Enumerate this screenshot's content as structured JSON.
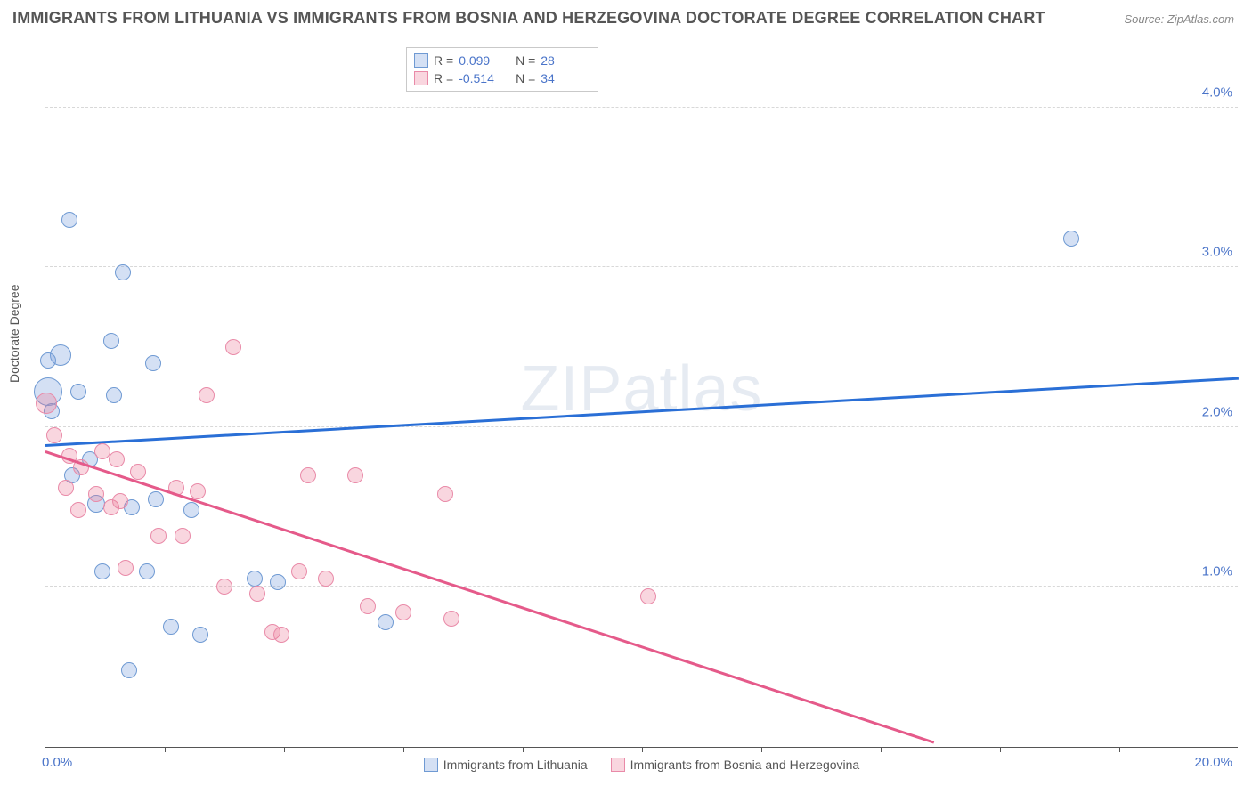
{
  "title": "IMMIGRANTS FROM LITHUANIA VS IMMIGRANTS FROM BOSNIA AND HERZEGOVINA DOCTORATE DEGREE CORRELATION CHART",
  "source": "Source: ZipAtlas.com",
  "watermark": "ZIPatlas",
  "chart": {
    "type": "scatter",
    "xlim": [
      0,
      20
    ],
    "ylim": [
      0,
      4.4
    ],
    "y_ticks": [
      1.0,
      2.0,
      3.0,
      4.0
    ],
    "x_minor_ticks": [
      2,
      4,
      6,
      8,
      10,
      12,
      14,
      16,
      18
    ],
    "x_label_min": "0.0%",
    "x_label_max": "20.0%",
    "y_tick_labels": [
      "1.0%",
      "2.0%",
      "3.0%",
      "4.0%"
    ],
    "y_axis_label": "Doctorate Degree",
    "background_color": "#ffffff",
    "grid_color": "#d8d8d8"
  },
  "series": [
    {
      "name": "Immigrants from Lithuania",
      "fill": "rgba(120,160,220,0.32)",
      "stroke": "#6f9ad3",
      "line_color": "#2a6fd6",
      "R": "0.099",
      "N": "28",
      "trend": {
        "x1": 0,
        "y1": 1.88,
        "x2": 20,
        "y2": 2.3
      },
      "points": [
        {
          "x": 0.4,
          "y": 3.3,
          "r": 9
        },
        {
          "x": 17.2,
          "y": 3.18,
          "r": 9
        },
        {
          "x": 1.3,
          "y": 2.97,
          "r": 9
        },
        {
          "x": 1.1,
          "y": 2.54,
          "r": 9
        },
        {
          "x": 0.25,
          "y": 2.45,
          "r": 12
        },
        {
          "x": 0.05,
          "y": 2.42,
          "r": 9
        },
        {
          "x": 1.8,
          "y": 2.4,
          "r": 9
        },
        {
          "x": 0.05,
          "y": 2.22,
          "r": 16
        },
        {
          "x": 0.55,
          "y": 2.22,
          "r": 9
        },
        {
          "x": 1.15,
          "y": 2.2,
          "r": 9
        },
        {
          "x": 0.1,
          "y": 2.1,
          "r": 9
        },
        {
          "x": 0.75,
          "y": 1.8,
          "r": 9
        },
        {
          "x": 0.45,
          "y": 1.7,
          "r": 9
        },
        {
          "x": 1.85,
          "y": 1.55,
          "r": 9
        },
        {
          "x": 0.85,
          "y": 1.52,
          "r": 10
        },
        {
          "x": 1.45,
          "y": 1.5,
          "r": 9
        },
        {
          "x": 2.45,
          "y": 1.48,
          "r": 9
        },
        {
          "x": 0.95,
          "y": 1.1,
          "r": 9
        },
        {
          "x": 1.7,
          "y": 1.1,
          "r": 9
        },
        {
          "x": 3.5,
          "y": 1.05,
          "r": 9
        },
        {
          "x": 3.9,
          "y": 1.03,
          "r": 9
        },
        {
          "x": 5.7,
          "y": 0.78,
          "r": 9
        },
        {
          "x": 2.1,
          "y": 0.75,
          "r": 9
        },
        {
          "x": 2.6,
          "y": 0.7,
          "r": 9
        },
        {
          "x": 1.4,
          "y": 0.48,
          "r": 9
        }
      ]
    },
    {
      "name": "Immigrants from Bosnia and Herzegovina",
      "fill": "rgba(236,120,150,0.30)",
      "stroke": "#e98aa8",
      "line_color": "#e55a8a",
      "R": "-0.514",
      "N": "34",
      "trend": {
        "x1": 0,
        "y1": 1.84,
        "x2": 14.9,
        "y2": 0.02
      },
      "points": [
        {
          "x": 3.15,
          "y": 2.5,
          "r": 9
        },
        {
          "x": 2.7,
          "y": 2.2,
          "r": 9
        },
        {
          "x": 0.02,
          "y": 2.15,
          "r": 12
        },
        {
          "x": 0.15,
          "y": 1.95,
          "r": 9
        },
        {
          "x": 0.95,
          "y": 1.85,
          "r": 9
        },
        {
          "x": 0.4,
          "y": 1.82,
          "r": 9
        },
        {
          "x": 1.2,
          "y": 1.8,
          "r": 9
        },
        {
          "x": 0.6,
          "y": 1.75,
          "r": 9
        },
        {
          "x": 1.55,
          "y": 1.72,
          "r": 9
        },
        {
          "x": 4.4,
          "y": 1.7,
          "r": 9
        },
        {
          "x": 5.2,
          "y": 1.7,
          "r": 9
        },
        {
          "x": 0.35,
          "y": 1.62,
          "r": 9
        },
        {
          "x": 0.85,
          "y": 1.58,
          "r": 9
        },
        {
          "x": 2.2,
          "y": 1.62,
          "r": 9
        },
        {
          "x": 2.55,
          "y": 1.6,
          "r": 9
        },
        {
          "x": 6.7,
          "y": 1.58,
          "r": 9
        },
        {
          "x": 0.55,
          "y": 1.48,
          "r": 9
        },
        {
          "x": 1.1,
          "y": 1.5,
          "r": 9
        },
        {
          "x": 1.25,
          "y": 1.54,
          "r": 9
        },
        {
          "x": 1.9,
          "y": 1.32,
          "r": 9
        },
        {
          "x": 2.3,
          "y": 1.32,
          "r": 9
        },
        {
          "x": 1.35,
          "y": 1.12,
          "r": 9
        },
        {
          "x": 4.25,
          "y": 1.1,
          "r": 9
        },
        {
          "x": 4.7,
          "y": 1.05,
          "r": 9
        },
        {
          "x": 3.0,
          "y": 1.0,
          "r": 9
        },
        {
          "x": 3.55,
          "y": 0.96,
          "r": 9
        },
        {
          "x": 10.1,
          "y": 0.94,
          "r": 9
        },
        {
          "x": 5.4,
          "y": 0.88,
          "r": 9
        },
        {
          "x": 6.0,
          "y": 0.84,
          "r": 9
        },
        {
          "x": 6.8,
          "y": 0.8,
          "r": 9
        },
        {
          "x": 3.8,
          "y": 0.72,
          "r": 9
        },
        {
          "x": 3.95,
          "y": 0.7,
          "r": 9
        }
      ]
    }
  ]
}
